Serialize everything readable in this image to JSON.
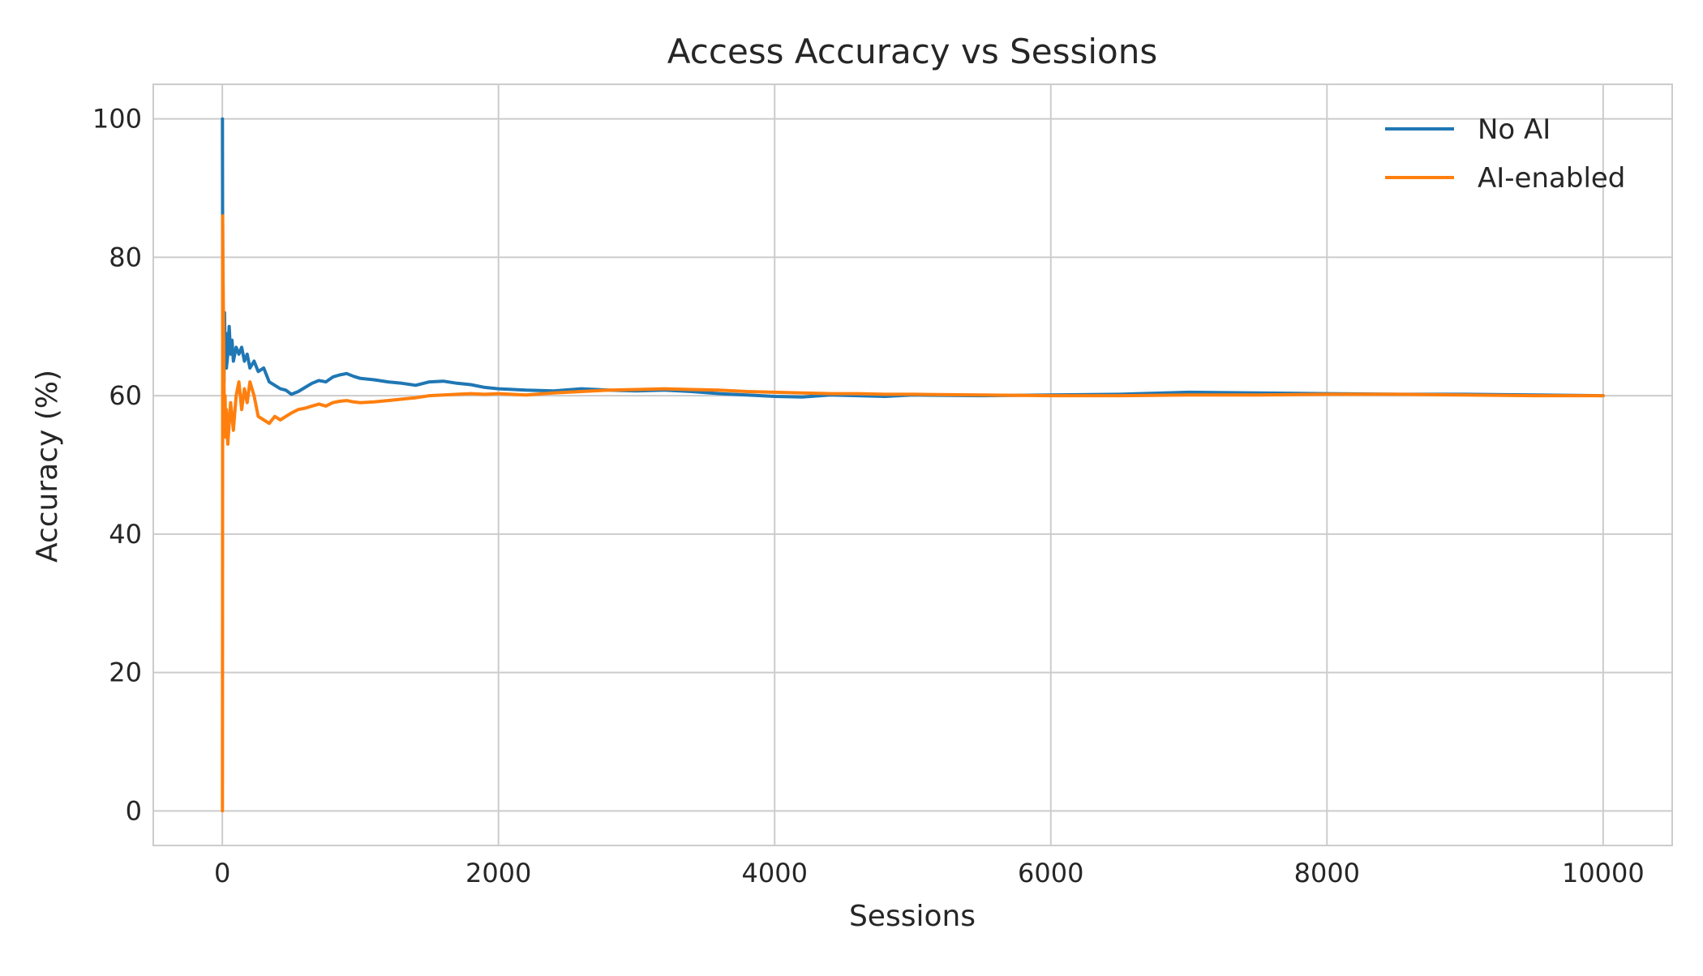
{
  "chart_data": {
    "type": "line",
    "title": "Access Accuracy vs Sessions",
    "xlabel": "Sessions",
    "ylabel": "Accuracy (%)",
    "xlim": [
      -500,
      10500
    ],
    "ylim": [
      -5,
      105
    ],
    "xticks": [
      0,
      2000,
      4000,
      6000,
      8000,
      10000
    ],
    "yticks": [
      0,
      20,
      40,
      60,
      80,
      100
    ],
    "grid": true,
    "legend_position": "top-right",
    "series": [
      {
        "name": "No AI",
        "color": "#1f77b4",
        "x": [
          1,
          2,
          3,
          5,
          8,
          12,
          16,
          20,
          25,
          30,
          40,
          50,
          60,
          70,
          80,
          100,
          120,
          140,
          160,
          180,
          200,
          230,
          260,
          300,
          340,
          380,
          420,
          460,
          500,
          550,
          600,
          650,
          700,
          750,
          800,
          850,
          900,
          950,
          1000,
          1100,
          1200,
          1300,
          1400,
          1500,
          1600,
          1700,
          1800,
          1900,
          2000,
          2200,
          2400,
          2600,
          2800,
          3000,
          3200,
          3400,
          3600,
          3800,
          4000,
          4200,
          4400,
          4600,
          4800,
          5000,
          5500,
          6000,
          6500,
          7000,
          7500,
          8000,
          8500,
          9000,
          9500,
          10000
        ],
        "y": [
          100,
          85,
          75,
          68,
          70,
          62,
          72,
          66,
          69,
          64,
          66,
          70,
          66,
          68,
          65,
          67,
          66,
          67,
          65,
          66,
          64,
          65,
          63.5,
          64,
          62,
          61.5,
          61,
          60.8,
          60.2,
          60.6,
          61.2,
          61.8,
          62.2,
          62,
          62.7,
          63,
          63.2,
          62.8,
          62.5,
          62.3,
          62,
          61.8,
          61.5,
          62,
          62.1,
          61.8,
          61.6,
          61.2,
          61,
          60.8,
          60.7,
          61,
          60.8,
          60.7,
          60.8,
          60.6,
          60.3,
          60.1,
          59.9,
          59.8,
          60.1,
          60.0,
          59.9,
          60.1,
          60.0,
          60.1,
          60.2,
          60.5,
          60.4,
          60.3,
          60.2,
          60.2,
          60.1,
          60.0
        ]
      },
      {
        "name": "AI-enabled",
        "color": "#ff7f0e",
        "x": [
          1,
          2,
          3,
          5,
          8,
          12,
          16,
          20,
          25,
          30,
          40,
          50,
          60,
          70,
          80,
          100,
          120,
          140,
          160,
          180,
          200,
          230,
          260,
          300,
          340,
          380,
          420,
          460,
          500,
          550,
          600,
          650,
          700,
          750,
          800,
          850,
          900,
          950,
          1000,
          1100,
          1200,
          1300,
          1400,
          1500,
          1600,
          1700,
          1800,
          1900,
          2000,
          2200,
          2400,
          2600,
          2800,
          3000,
          3200,
          3400,
          3600,
          3800,
          4000,
          4200,
          4400,
          4600,
          4800,
          5000,
          5500,
          6000,
          6500,
          7000,
          7500,
          8000,
          8500,
          9000,
          9500,
          10000
        ],
        "y": [
          0,
          50,
          86,
          78,
          72,
          62,
          55,
          60,
          54,
          58,
          53,
          56,
          59,
          57,
          55,
          60,
          62,
          58,
          61,
          59,
          62,
          60,
          57,
          56.5,
          56,
          57,
          56.5,
          57,
          57.5,
          58,
          58.2,
          58.5,
          58.8,
          58.5,
          59,
          59.2,
          59.3,
          59.1,
          59,
          59.1,
          59.3,
          59.5,
          59.7,
          60,
          60.1,
          60.2,
          60.3,
          60.2,
          60.3,
          60.1,
          60.4,
          60.6,
          60.8,
          60.9,
          61,
          60.9,
          60.8,
          60.6,
          60.5,
          60.4,
          60.3,
          60.3,
          60.2,
          60.2,
          60.1,
          60.0,
          60.0,
          60.1,
          60.1,
          60.2,
          60.2,
          60.1,
          60.0,
          60.0
        ]
      }
    ]
  }
}
